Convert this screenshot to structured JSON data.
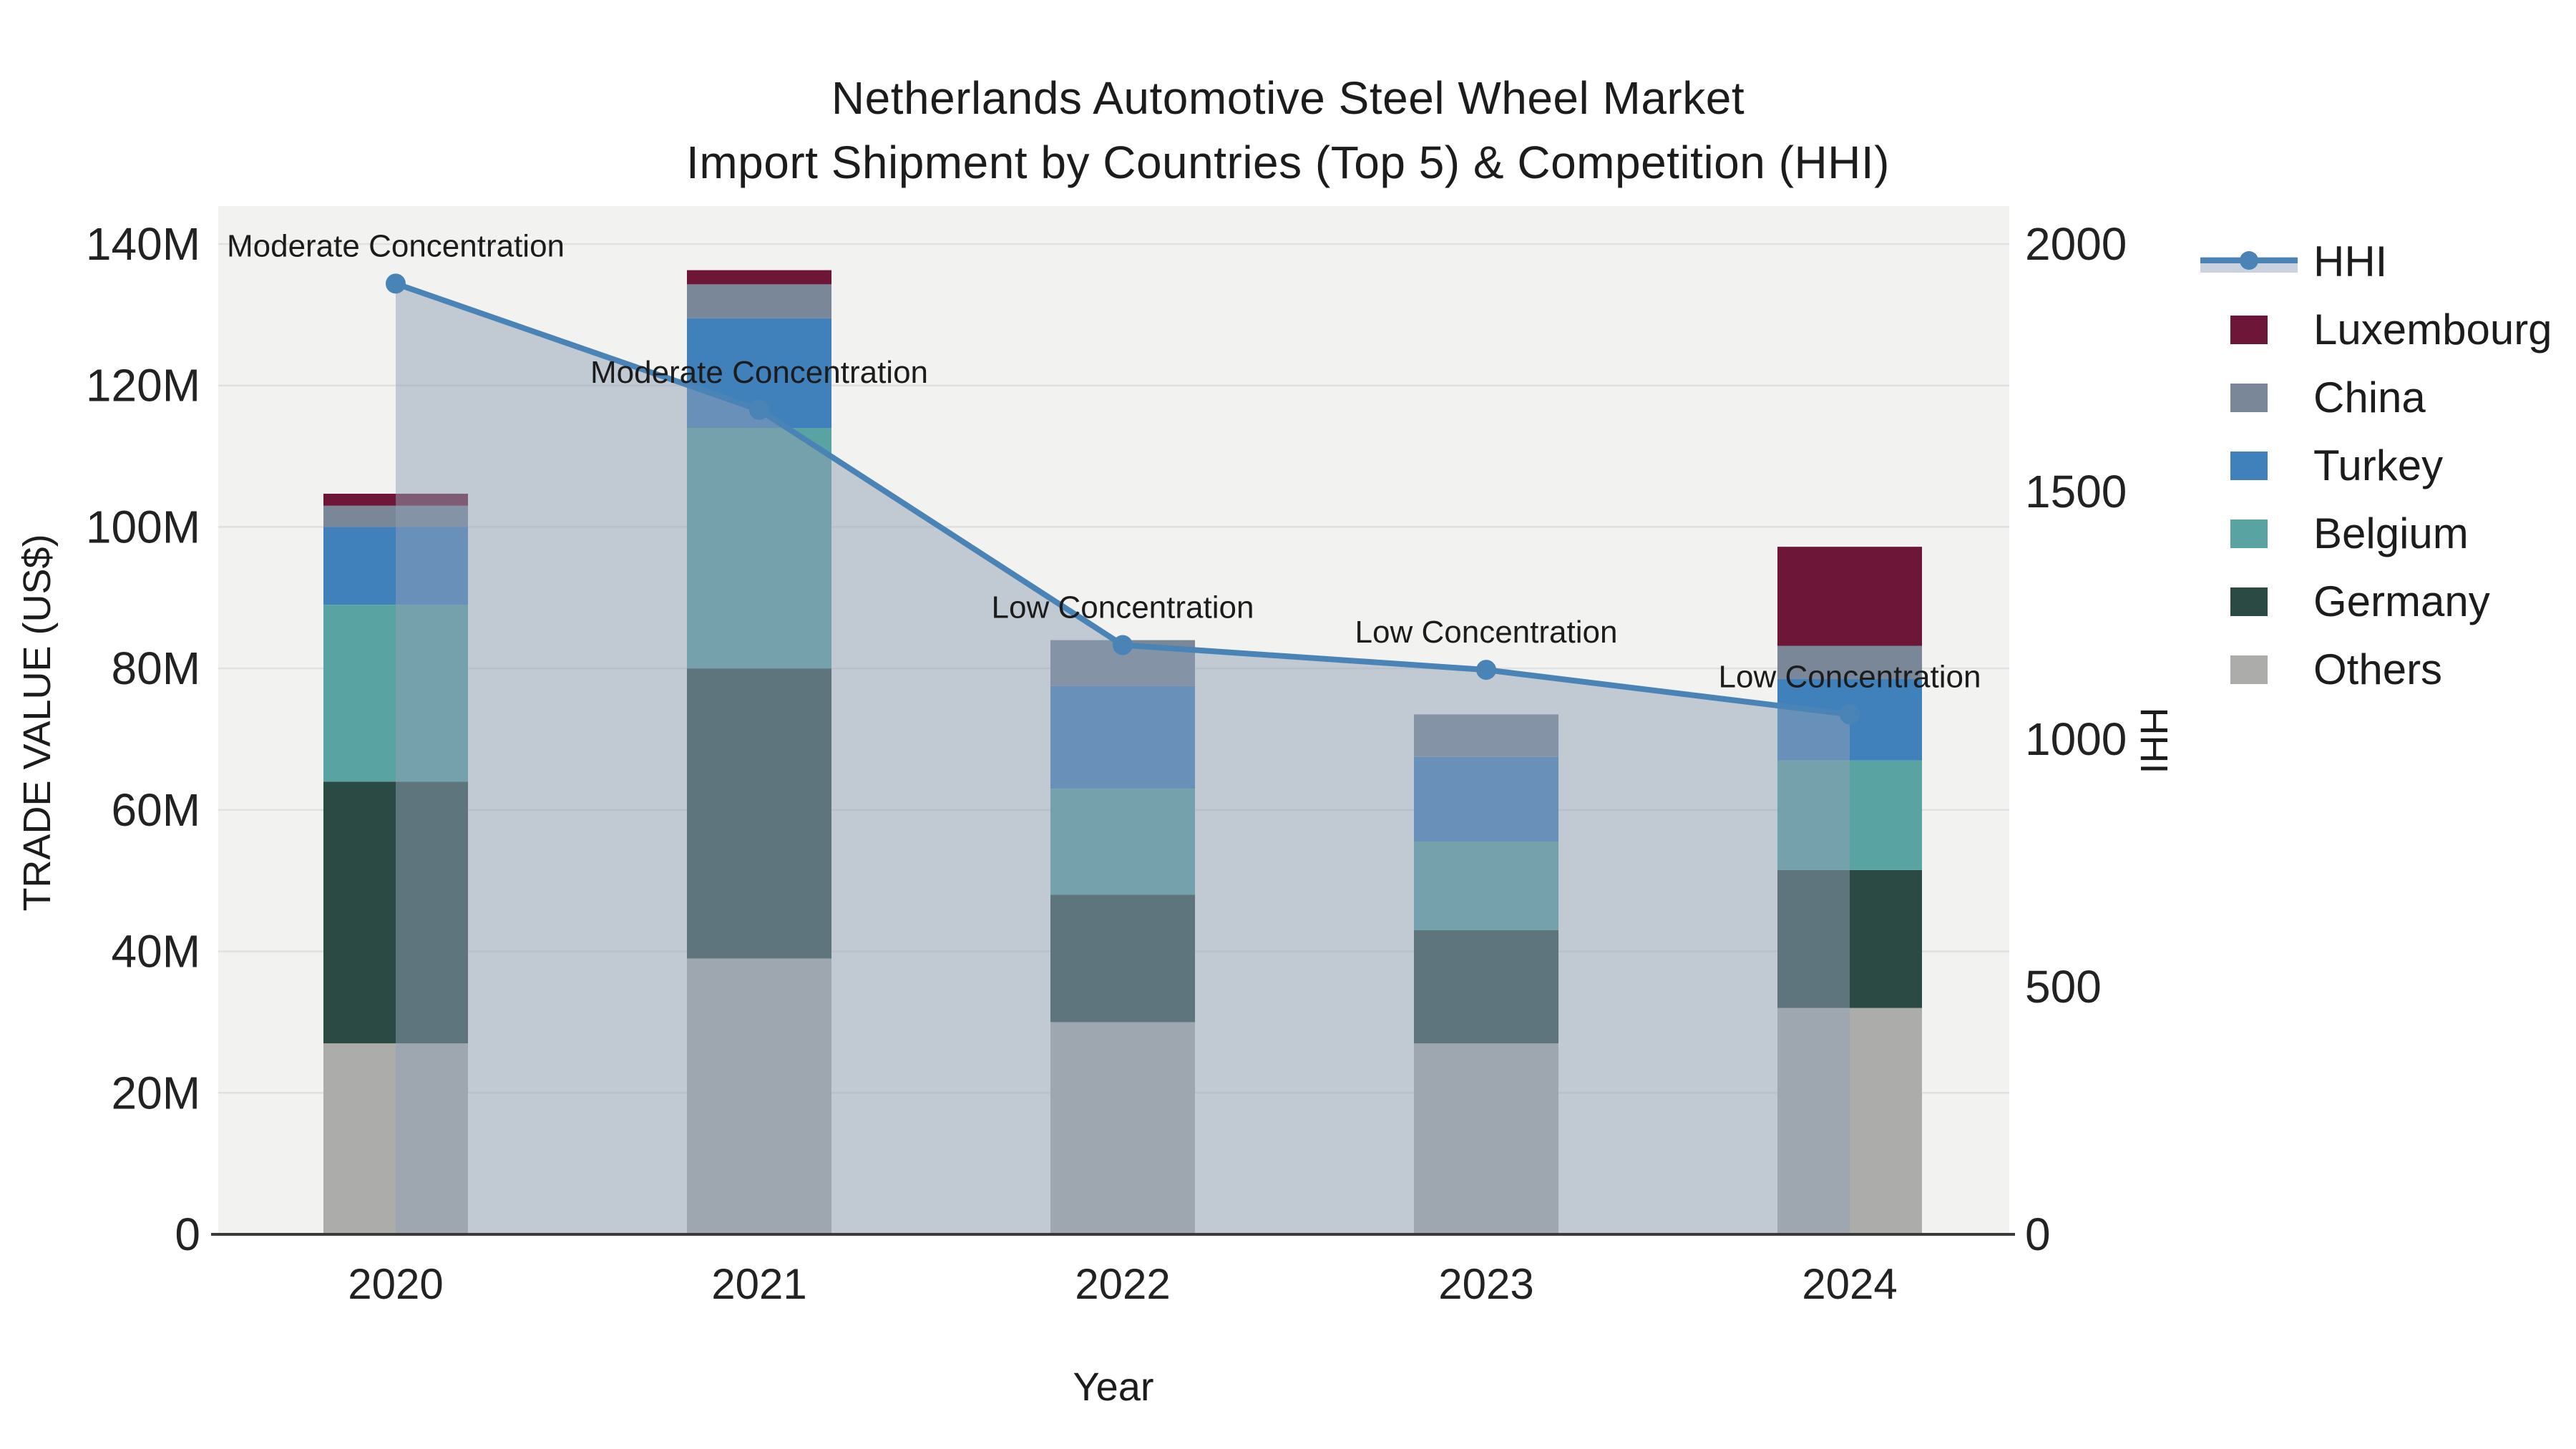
{
  "chart_data": {
    "type": "bar",
    "subtype": "stacked-bars-with-dual-axis-line",
    "title": {
      "line1": "Netherlands Automotive Steel Wheel Market",
      "line2": "Import Shipment by Countries (Top 5) & Competition (HHI)"
    },
    "xlabel": "Year",
    "ylabel_left": "TRADE VALUE (US$)",
    "ylabel_right": "HHI",
    "categories": [
      "2020",
      "2021",
      "2022",
      "2023",
      "2024"
    ],
    "value_unit": "million US$",
    "series": [
      {
        "name": "Others",
        "color": "#ACACAA",
        "values": [
          27.0,
          39.0,
          30.0,
          27.0,
          32.0
        ]
      },
      {
        "name": "Germany",
        "color": "#2C4A44",
        "values": [
          37.0,
          41.0,
          18.0,
          16.0,
          19.5
        ]
      },
      {
        "name": "Belgium",
        "color": "#5AA3A3",
        "values": [
          25.0,
          34.0,
          15.0,
          12.5,
          15.5
        ]
      },
      {
        "name": "Turkey",
        "color": "#4181BB",
        "values": [
          11.0,
          15.5,
          14.5,
          12.0,
          11.5
        ]
      },
      {
        "name": "China",
        "color": "#7A8799",
        "values": [
          3.0,
          4.8,
          6.5,
          6.0,
          4.7
        ]
      },
      {
        "name": "Luxembourg",
        "color": "#6E1637",
        "values": [
          1.7,
          2.0,
          0.0,
          0.0,
          14.0
        ]
      }
    ],
    "stack_order_bottom_to_top": [
      "Others",
      "Germany",
      "Belgium",
      "Turkey",
      "China",
      "Luxembourg"
    ],
    "hhi_series": {
      "name": "HHI",
      "values": [
        1920,
        1665,
        1190,
        1140,
        1050
      ],
      "line_color": "#4A84B6",
      "marker_color": "#4A84B6",
      "area_fill_color": "rgba(143,159,181,0.5)",
      "legend_band_color": "#C9D2DE"
    },
    "point_annotations": [
      "Moderate Concentration",
      "Moderate Concentration",
      "Low Concentration",
      "Low Concentration",
      "Low Concentration"
    ],
    "y_axis_left": {
      "ticks": [
        "0",
        "20M",
        "40M",
        "60M",
        "80M",
        "100M",
        "120M",
        "140M"
      ],
      "min": 0,
      "max_millions": 140
    },
    "y_axis_right": {
      "ticks": [
        "0",
        "500",
        "1000",
        "1500",
        "2000"
      ],
      "min": 0,
      "max": 2000
    },
    "legend_order": [
      "HHI",
      "Luxembourg",
      "China",
      "Turkey",
      "Belgium",
      "Germany",
      "Others"
    ],
    "legend_position": "right-top",
    "grid": true,
    "plot_bg_color": "#F2F2F1",
    "grid_color": "#E0E0E0",
    "axis_line_color": "#3A3A3A",
    "text_color": "#1c1c1c"
  }
}
